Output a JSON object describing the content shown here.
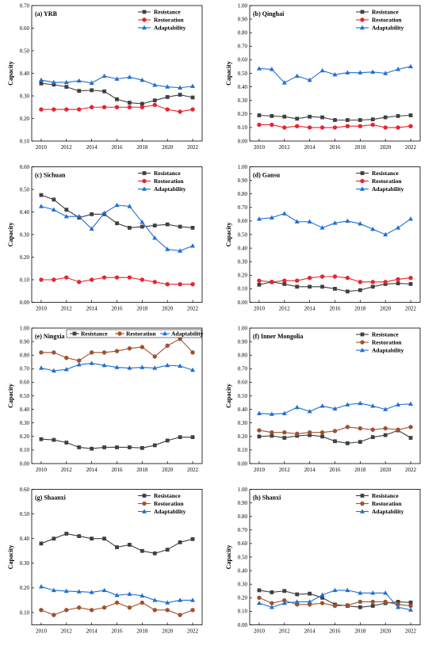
{
  "chart_data": [
    {
      "type": "line",
      "title": "(a) YRB",
      "ylabel": "Capacity",
      "x": [
        2010,
        2011,
        2012,
        2013,
        2014,
        2015,
        2016,
        2017,
        2018,
        2019,
        2020,
        2021,
        2022
      ],
      "xticks": [
        2010,
        2012,
        2014,
        2016,
        2018,
        2020,
        2022
      ],
      "ylim": [
        0.1,
        0.7
      ],
      "yticks": [
        "0.10",
        "0.20",
        "0.30",
        "0.40",
        "0.50",
        "0.60",
        "0.70"
      ],
      "legend_pos": "top-right",
      "legend_layout": "column",
      "series": [
        {
          "name": "Resistance",
          "color": "#404040",
          "marker": "square",
          "values": [
            0.355,
            0.35,
            0.34,
            0.322,
            0.325,
            0.32,
            0.285,
            0.27,
            0.265,
            0.28,
            0.295,
            0.305,
            0.293
          ]
        },
        {
          "name": "Restoration",
          "color": "#e8242e",
          "marker": "circle",
          "values": [
            0.24,
            0.24,
            0.24,
            0.24,
            0.25,
            0.25,
            0.25,
            0.25,
            0.25,
            0.26,
            0.24,
            0.23,
            0.24
          ]
        },
        {
          "name": "Adaptability",
          "color": "#1f6fd1",
          "marker": "triangle",
          "values": [
            0.37,
            0.36,
            0.36,
            0.367,
            0.357,
            0.388,
            0.375,
            0.383,
            0.37,
            0.348,
            0.34,
            0.336,
            0.343
          ]
        }
      ]
    },
    {
      "type": "line",
      "title": "(b) Qinghai",
      "ylabel": "Capacity",
      "x": [
        2010,
        2011,
        2012,
        2013,
        2014,
        2015,
        2016,
        2017,
        2018,
        2019,
        2020,
        2021,
        2022
      ],
      "xticks": [
        2010,
        2012,
        2014,
        2016,
        2018,
        2020,
        2022
      ],
      "ylim": [
        0.0,
        1.0
      ],
      "yticks": [
        "0.00",
        "0.10",
        "0.20",
        "0.30",
        "0.40",
        "0.50",
        "0.60",
        "0.70",
        "0.80",
        "0.90",
        "1.00"
      ],
      "legend_pos": "top-right",
      "legend_layout": "column",
      "series": [
        {
          "name": "Resistance",
          "color": "#404040",
          "marker": "square",
          "values": [
            0.19,
            0.185,
            0.18,
            0.165,
            0.18,
            0.175,
            0.155,
            0.155,
            0.155,
            0.16,
            0.175,
            0.185,
            0.19
          ]
        },
        {
          "name": "Restoration",
          "color": "#e8242e",
          "marker": "circle",
          "values": [
            0.12,
            0.12,
            0.1,
            0.11,
            0.1,
            0.1,
            0.1,
            0.11,
            0.11,
            0.12,
            0.1,
            0.1,
            0.11
          ]
        },
        {
          "name": "Adaptability",
          "color": "#1f6fd1",
          "marker": "triangle",
          "values": [
            0.535,
            0.53,
            0.43,
            0.48,
            0.45,
            0.52,
            0.49,
            0.505,
            0.505,
            0.51,
            0.5,
            0.53,
            0.55
          ]
        }
      ]
    },
    {
      "type": "line",
      "title": "(c) Sichuan",
      "ylabel": "Capacity",
      "x": [
        2010,
        2011,
        2012,
        2013,
        2014,
        2015,
        2016,
        2017,
        2018,
        2019,
        2020,
        2021,
        2022
      ],
      "xticks": [
        2010,
        2012,
        2014,
        2016,
        2018,
        2020,
        2022
      ],
      "ylim": [
        0.0,
        0.6
      ],
      "yticks": [
        "0.00",
        "0.10",
        "0.20",
        "0.30",
        "0.40",
        "0.50",
        "0.60"
      ],
      "legend_pos": "top-right",
      "legend_layout": "column",
      "series": [
        {
          "name": "Resistance",
          "color": "#404040",
          "marker": "square",
          "values": [
            0.475,
            0.455,
            0.41,
            0.375,
            0.39,
            0.39,
            0.35,
            0.33,
            0.335,
            0.34,
            0.345,
            0.335,
            0.33
          ]
        },
        {
          "name": "Restoration",
          "color": "#e8242e",
          "marker": "circle",
          "values": [
            0.1,
            0.1,
            0.11,
            0.09,
            0.1,
            0.11,
            0.11,
            0.11,
            0.1,
            0.09,
            0.08,
            0.08,
            0.08
          ]
        },
        {
          "name": "Adaptability",
          "color": "#1f6fd1",
          "marker": "triangle",
          "values": [
            0.425,
            0.41,
            0.38,
            0.38,
            0.325,
            0.395,
            0.43,
            0.425,
            0.355,
            0.285,
            0.235,
            0.228,
            0.25
          ]
        }
      ]
    },
    {
      "type": "line",
      "title": "(d) Gansu",
      "ylabel": "Capacity",
      "x": [
        2010,
        2011,
        2012,
        2013,
        2014,
        2015,
        2016,
        2017,
        2018,
        2019,
        2020,
        2021,
        2022
      ],
      "xticks": [
        2010,
        2012,
        2014,
        2016,
        2018,
        2020,
        2022
      ],
      "ylim": [
        0.0,
        1.0
      ],
      "yticks": [
        "0.00",
        "0.10",
        "0.20",
        "0.30",
        "0.40",
        "0.50",
        "0.60",
        "0.70",
        "0.80",
        "0.90",
        "1.00"
      ],
      "legend_pos": "top-right",
      "legend_layout": "column",
      "series": [
        {
          "name": "Resistance",
          "color": "#404040",
          "marker": "square",
          "values": [
            0.13,
            0.15,
            0.135,
            0.115,
            0.115,
            0.115,
            0.1,
            0.08,
            0.09,
            0.115,
            0.135,
            0.14,
            0.135
          ]
        },
        {
          "name": "Restoration",
          "color": "#e8242e",
          "marker": "circle",
          "values": [
            0.16,
            0.15,
            0.16,
            0.16,
            0.18,
            0.19,
            0.19,
            0.18,
            0.15,
            0.15,
            0.15,
            0.17,
            0.18
          ]
        },
        {
          "name": "Adaptability",
          "color": "#1f6fd1",
          "marker": "triangle",
          "values": [
            0.615,
            0.625,
            0.655,
            0.595,
            0.595,
            0.55,
            0.585,
            0.6,
            0.58,
            0.54,
            0.5,
            0.55,
            0.615
          ]
        }
      ]
    },
    {
      "type": "line",
      "title": "(e) Ningxia",
      "ylabel": "Capacity",
      "x": [
        2010,
        2011,
        2012,
        2013,
        2014,
        2015,
        2016,
        2017,
        2018,
        2019,
        2020,
        2021,
        2022
      ],
      "xticks": [
        2010,
        2012,
        2014,
        2016,
        2018,
        2020,
        2022
      ],
      "ylim": [
        0.0,
        1.0
      ],
      "yticks": [
        "0.00",
        "0.10",
        "0.20",
        "0.30",
        "0.40",
        "0.50",
        "0.60",
        "0.70",
        "0.80",
        "0.90",
        "1.00"
      ],
      "legend_pos": "top",
      "legend_layout": "row",
      "series": [
        {
          "name": "Resistance",
          "color": "#404040",
          "marker": "square",
          "values": [
            0.18,
            0.175,
            0.155,
            0.12,
            0.11,
            0.12,
            0.12,
            0.12,
            0.115,
            0.135,
            0.17,
            0.195,
            0.195
          ]
        },
        {
          "name": "Restoration",
          "color": "#a0522d",
          "marker": "circle",
          "values": [
            0.82,
            0.82,
            0.78,
            0.76,
            0.82,
            0.82,
            0.83,
            0.85,
            0.86,
            0.79,
            0.87,
            0.92,
            0.82
          ]
        },
        {
          "name": "Adaptability",
          "color": "#1f6fd1",
          "marker": "triangle",
          "values": [
            0.705,
            0.685,
            0.695,
            0.73,
            0.74,
            0.725,
            0.71,
            0.705,
            0.71,
            0.705,
            0.725,
            0.72,
            0.69
          ]
        }
      ]
    },
    {
      "type": "line",
      "title": "(f) Inner Mongolia",
      "ylabel": "Capacity",
      "x": [
        2010,
        2011,
        2012,
        2013,
        2014,
        2015,
        2016,
        2017,
        2018,
        2019,
        2020,
        2021,
        2022
      ],
      "xticks": [
        2010,
        2012,
        2014,
        2016,
        2018,
        2020,
        2022
      ],
      "ylim": [
        0.0,
        1.0
      ],
      "yticks": [
        "0.00",
        "0.10",
        "0.20",
        "0.30",
        "0.40",
        "0.50",
        "0.60",
        "0.70",
        "0.80",
        "0.90",
        "1.00"
      ],
      "legend_pos": "top-right",
      "legend_layout": "column",
      "series": [
        {
          "name": "Resistance",
          "color": "#404040",
          "marker": "square",
          "values": [
            0.2,
            0.205,
            0.19,
            0.205,
            0.21,
            0.2,
            0.165,
            0.15,
            0.16,
            0.195,
            0.21,
            0.245,
            0.19
          ]
        },
        {
          "name": "Restoration",
          "color": "#a0522d",
          "marker": "circle",
          "values": [
            0.245,
            0.23,
            0.23,
            0.22,
            0.23,
            0.23,
            0.24,
            0.27,
            0.26,
            0.25,
            0.26,
            0.25,
            0.27
          ]
        },
        {
          "name": "Adaptability",
          "color": "#1f6fd1",
          "marker": "triangle",
          "values": [
            0.37,
            0.365,
            0.37,
            0.415,
            0.385,
            0.425,
            0.405,
            0.435,
            0.445,
            0.425,
            0.4,
            0.435,
            0.44
          ]
        }
      ]
    },
    {
      "type": "line",
      "title": "(g) Shaanxi",
      "ylabel": "Capacity",
      "x": [
        2010,
        2011,
        2012,
        2013,
        2014,
        2015,
        2016,
        2017,
        2018,
        2019,
        2020,
        2021,
        2022
      ],
      "xticks": [
        2010,
        2012,
        2014,
        2016,
        2018,
        2020,
        2022
      ],
      "ylim": [
        0.05,
        0.6
      ],
      "yticks": [
        "0.10",
        "0.20",
        "0.30",
        "0.40",
        "0.50",
        "0.60"
      ],
      "legend_pos": "top-right",
      "legend_layout": "column",
      "series": [
        {
          "name": "Resistance",
          "color": "#404040",
          "marker": "square",
          "values": [
            0.38,
            0.4,
            0.42,
            0.41,
            0.4,
            0.4,
            0.365,
            0.375,
            0.35,
            0.34,
            0.355,
            0.385,
            0.398
          ]
        },
        {
          "name": "Restoration",
          "color": "#a0522d",
          "marker": "circle",
          "values": [
            0.11,
            0.09,
            0.11,
            0.12,
            0.11,
            0.12,
            0.14,
            0.12,
            0.14,
            0.11,
            0.11,
            0.09,
            0.11
          ]
        },
        {
          "name": "Adaptability",
          "color": "#1f6fd1",
          "marker": "triangle",
          "values": [
            0.205,
            0.19,
            0.187,
            0.185,
            0.182,
            0.19,
            0.17,
            0.175,
            0.168,
            0.15,
            0.14,
            0.15,
            0.15
          ]
        }
      ]
    },
    {
      "type": "line",
      "title": "(h) Shanxi",
      "ylabel": "Capacity",
      "x": [
        2010,
        2011,
        2012,
        2013,
        2014,
        2015,
        2016,
        2017,
        2018,
        2019,
        2020,
        2021,
        2022
      ],
      "xticks": [
        2010,
        2012,
        2014,
        2016,
        2018,
        2020,
        2022
      ],
      "ylim": [
        0.0,
        1.0
      ],
      "yticks": [
        "0.00",
        "0.10",
        "0.20",
        "0.30",
        "0.40",
        "0.50",
        "0.60",
        "0.70",
        "0.80",
        "0.90",
        "1.00"
      ],
      "legend_pos": "top-right",
      "legend_layout": "column",
      "series": [
        {
          "name": "Resistance",
          "color": "#404040",
          "marker": "square",
          "values": [
            0.255,
            0.24,
            0.25,
            0.225,
            0.23,
            0.2,
            0.15,
            0.14,
            0.13,
            0.14,
            0.16,
            0.17,
            0.165
          ]
        },
        {
          "name": "Restoration",
          "color": "#a0522d",
          "marker": "circle",
          "values": [
            0.2,
            0.16,
            0.18,
            0.15,
            0.15,
            0.16,
            0.14,
            0.145,
            0.17,
            0.17,
            0.17,
            0.15,
            0.14
          ]
        },
        {
          "name": "Adaptability",
          "color": "#1f6fd1",
          "marker": "triangle",
          "values": [
            0.16,
            0.13,
            0.16,
            0.17,
            0.17,
            0.22,
            0.255,
            0.255,
            0.235,
            0.235,
            0.235,
            0.13,
            0.11
          ]
        }
      ]
    }
  ]
}
